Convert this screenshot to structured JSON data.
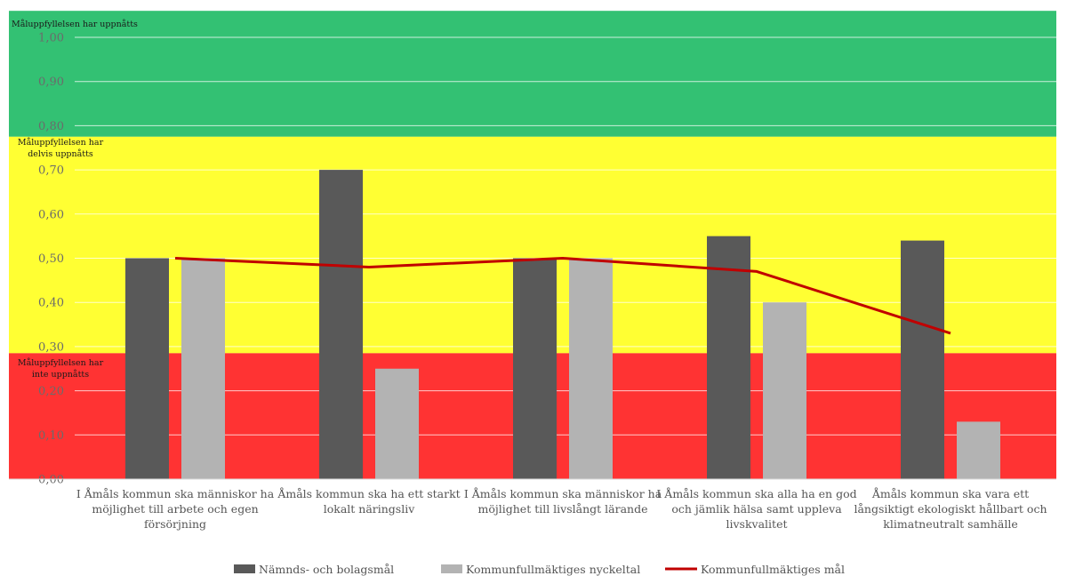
{
  "chart_data": {
    "type": "bar",
    "ylim": [
      0,
      1
    ],
    "yticks": [
      "0,00",
      "0,10",
      "0,20",
      "0,30",
      "0,40",
      "0,50",
      "0,60",
      "0,70",
      "0,80",
      "0,90",
      "1,00"
    ],
    "grid": true,
    "legend_position": "bottom",
    "zones": [
      {
        "from": 0.775,
        "to": 1.06,
        "color": "#33c173",
        "label_lines": [
          "Måluppfyllelsen har uppnåtts"
        ]
      },
      {
        "from": 0.285,
        "to": 0.775,
        "color": "#ffff33",
        "label_lines": [
          "Måluppfyllelsen har",
          "delvis uppnåtts"
        ]
      },
      {
        "from": 0.0,
        "to": 0.285,
        "color": "#ff3333",
        "label_lines": [
          "Måluppfyllelsen har",
          "inte uppnåtts"
        ]
      }
    ],
    "categories": [
      [
        "I Åmåls kommun ska människor ha",
        "möjlighet till arbete och egen",
        "försörjning"
      ],
      [
        "Åmåls kommun ska ha ett starkt",
        "lokalt näringsliv"
      ],
      [
        "I Åmåls kommun ska människor ha",
        "möjlighet till livslångt lärande"
      ],
      [
        "I Åmåls kommun ska alla ha en god",
        "och jämlik hälsa samt uppleva",
        "livskvalitet"
      ],
      [
        "Åmåls kommun ska vara ett",
        "långsiktigt ekologiskt hållbart och",
        "klimatneutralt samhälle"
      ]
    ],
    "series": [
      {
        "name": "Nämnds- och bolagsmål",
        "kind": "bar",
        "color": "#595959",
        "values": [
          0.5,
          0.7,
          0.5,
          0.55,
          0.54
        ]
      },
      {
        "name": "Kommunfullmäktiges nyckeltal",
        "kind": "bar",
        "color": "#b3b3b3",
        "values": [
          0.5,
          0.25,
          0.5,
          0.4,
          0.13
        ]
      },
      {
        "name": "Kommunfullmäktiges mål",
        "kind": "line",
        "color": "#c00000",
        "values": [
          0.5,
          0.48,
          0.5,
          0.47,
          0.33
        ]
      }
    ]
  }
}
